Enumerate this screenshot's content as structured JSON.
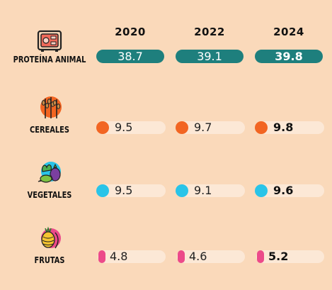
{
  "chart_data": {
    "type": "table",
    "years": [
      "2020",
      "2022",
      "2024"
    ],
    "rows": [
      {
        "category": "PROTEÍNA ANIMAL",
        "icon": "meat-icon",
        "color": "#1e7f7d",
        "values": [
          "38.7",
          "39.1",
          "39.8"
        ]
      },
      {
        "category": "CEREALES",
        "icon": "wheat-icon",
        "color": "#f26522",
        "values": [
          "9.5",
          "9.7",
          "9.8"
        ]
      },
      {
        "category": "VEGETALES",
        "icon": "vegetables-icon",
        "color": "#29c4e8",
        "values": [
          "9.5",
          "9.1",
          "9.6"
        ]
      },
      {
        "category": "FRUTAS",
        "icon": "fruits-icon",
        "color": "#ec4a8a",
        "values": [
          "4.8",
          "4.6",
          "5.2"
        ]
      }
    ]
  }
}
